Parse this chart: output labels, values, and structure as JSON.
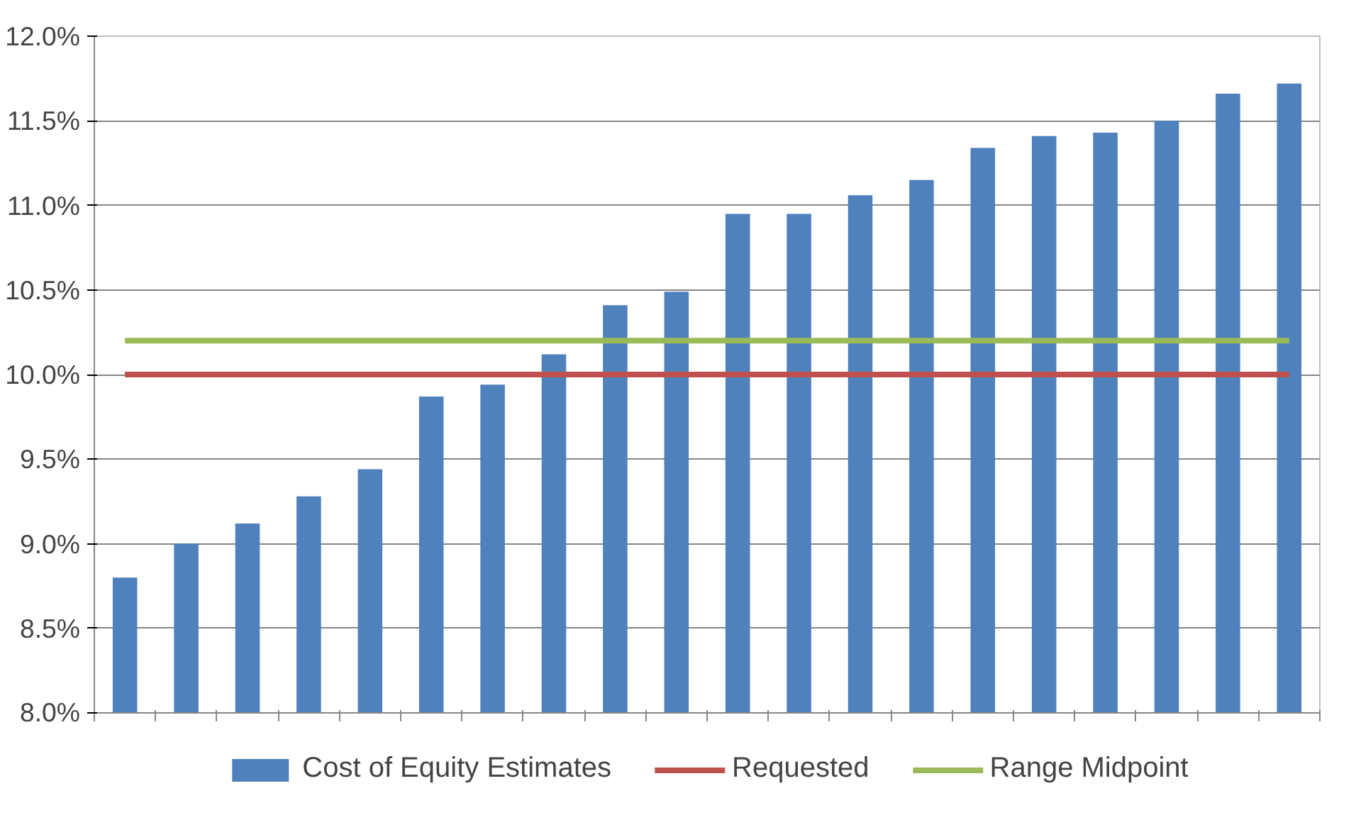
{
  "chart_data": {
    "type": "bar",
    "categories": [
      null,
      null,
      null,
      null,
      null,
      null,
      null,
      null,
      null,
      null,
      null,
      null,
      null,
      null,
      null,
      null,
      null,
      null,
      null,
      null
    ],
    "series": [
      {
        "name": "Cost of Equity Estimates",
        "color": "#4f81bd",
        "values": [
          8.8,
          9.0,
          9.12,
          9.28,
          9.44,
          9.87,
          9.94,
          10.12,
          10.41,
          10.49,
          10.95,
          10.95,
          11.06,
          11.15,
          11.34,
          11.41,
          11.43,
          11.5,
          11.66,
          11.72
        ]
      },
      {
        "name": "Requested",
        "type": "line",
        "color": "#c0504d",
        "values": [
          10.0,
          10.0,
          10.0,
          10.0,
          10.0,
          10.0,
          10.0,
          10.0,
          10.0,
          10.0,
          10.0,
          10.0,
          10.0,
          10.0,
          10.0,
          10.0,
          10.0,
          10.0,
          10.0,
          10.0
        ]
      },
      {
        "name": "Range Midpoint",
        "type": "line",
        "color": "#9bbb59",
        "values": [
          10.2,
          10.2,
          10.2,
          10.2,
          10.2,
          10.2,
          10.2,
          10.2,
          10.2,
          10.2,
          10.2,
          10.2,
          10.2,
          10.2,
          10.2,
          10.2,
          10.2,
          10.2,
          10.2,
          10.2
        ]
      }
    ],
    "ylim": [
      8,
      12
    ],
    "yticks": [
      {
        "value": 8,
        "label": "8.0%"
      },
      {
        "value": 8.5,
        "label": "8.5%"
      },
      {
        "value": 9,
        "label": "9.0%"
      },
      {
        "value": 9.5,
        "label": "9.5%"
      },
      {
        "value": 10,
        "label": "10.0%"
      },
      {
        "value": 10.5,
        "label": "10.5%"
      },
      {
        "value": 11,
        "label": "11.0%"
      },
      {
        "value": 11.5,
        "label": "11.5%"
      },
      {
        "value": 12,
        "label": "12.0%"
      }
    ],
    "grid": "y",
    "legend": "bottom",
    "tick_labels": "y"
  }
}
